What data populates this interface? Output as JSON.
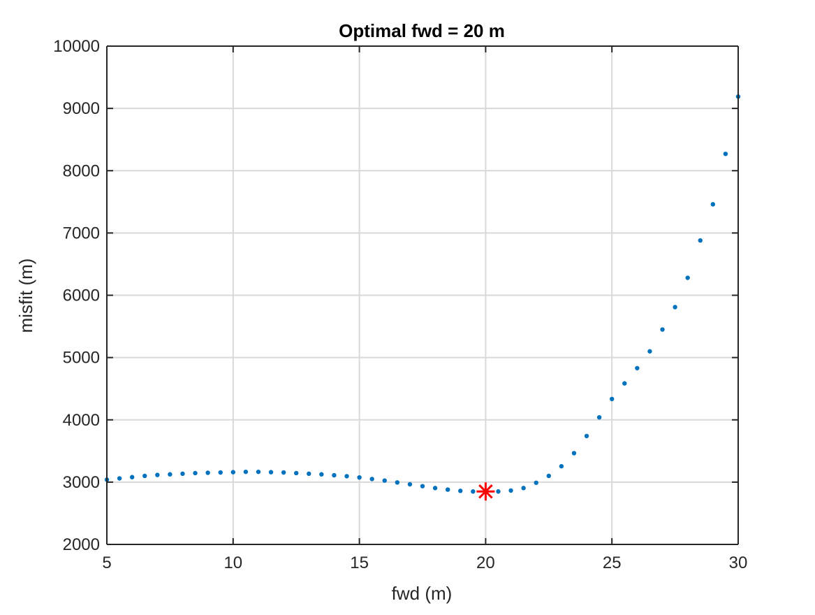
{
  "chart_data": {
    "type": "scatter",
    "title": "Optimal fwd = 20 m",
    "xlabel": "fwd (m)",
    "ylabel": "misfit (m)",
    "xlim": [
      5,
      30
    ],
    "ylim": [
      2000,
      10000
    ],
    "xticks": [
      5,
      10,
      15,
      20,
      25,
      30
    ],
    "yticks": [
      2000,
      3000,
      4000,
      5000,
      6000,
      7000,
      8000,
      9000,
      10000
    ],
    "grid": true,
    "series": [
      {
        "marker": "dot",
        "color": "#0072BD",
        "x": [
          5,
          5.5,
          6,
          6.5,
          7,
          7.5,
          8,
          8.5,
          9,
          9.5,
          10,
          10.5,
          11,
          11.5,
          12,
          12.5,
          13,
          13.5,
          14,
          14.5,
          15,
          15.5,
          16,
          16.5,
          17,
          17.5,
          18,
          18.5,
          19,
          19.5,
          20,
          20.5,
          21,
          21.5,
          22,
          22.5,
          23,
          23.5,
          24,
          24.5,
          25,
          25.5,
          26,
          26.5,
          27,
          27.5,
          28,
          28.5,
          29,
          29.5,
          30
        ],
        "y": [
          3040,
          3060,
          3080,
          3100,
          3115,
          3125,
          3135,
          3145,
          3150,
          3155,
          3160,
          3165,
          3165,
          3160,
          3155,
          3145,
          3135,
          3125,
          3110,
          3095,
          3075,
          3050,
          3025,
          2995,
          2965,
          2935,
          2905,
          2880,
          2860,
          2850,
          2850,
          2850,
          2865,
          2905,
          2990,
          3100,
          3255,
          3465,
          3740,
          4040,
          4335,
          4585,
          4830,
          5100,
          5450,
          5810,
          6280,
          6880,
          7460,
          8270,
          9190
        ]
      }
    ],
    "annotations": [
      {
        "type": "star-marker",
        "color": "#FF0000",
        "x": 20,
        "y": 2850
      }
    ]
  }
}
